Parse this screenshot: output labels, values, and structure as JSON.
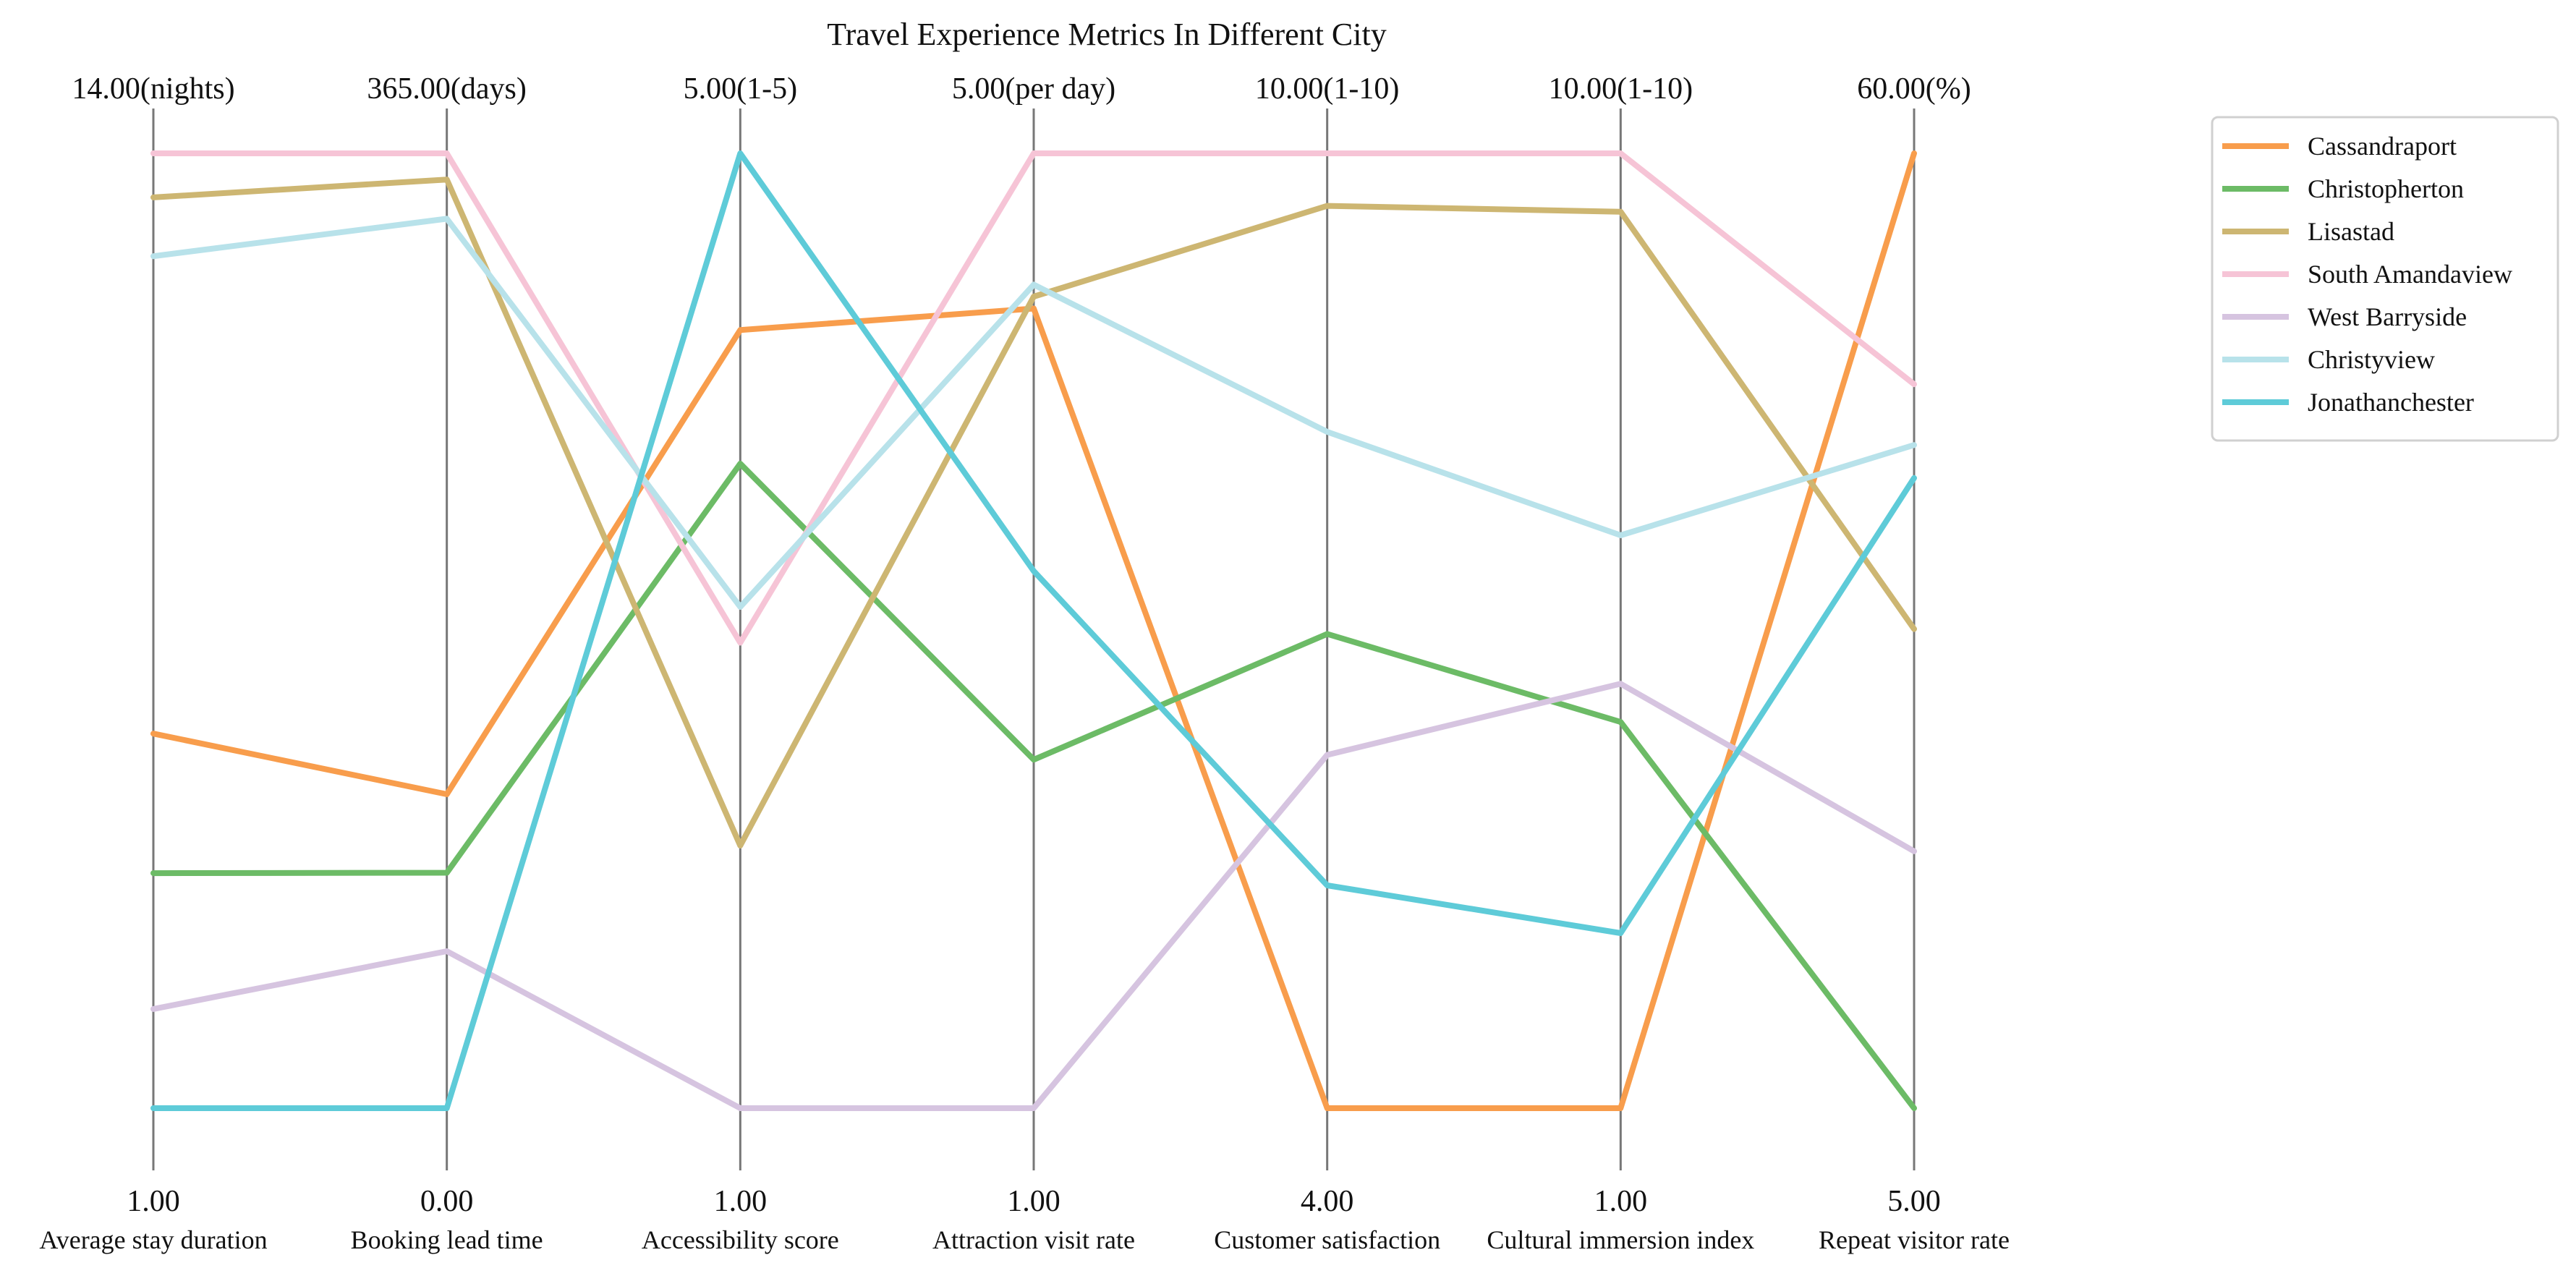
{
  "chart_data": {
    "type": "parallel_coordinates",
    "title": "Travel Experience Metrics In Different City",
    "axes": [
      {
        "name": "Average stay duration",
        "min_label": "1.00",
        "max_label": "14.00(nights)",
        "min": 1,
        "max": 14
      },
      {
        "name": "Booking lead time",
        "min_label": "0.00",
        "max_label": "365.00(days)",
        "min": 0,
        "max": 365
      },
      {
        "name": "Accessibility score",
        "min_label": "1.00",
        "max_label": "5.00(1-5)",
        "min": 1,
        "max": 5
      },
      {
        "name": "Attraction visit rate",
        "min_label": "1.00",
        "max_label": "5.00(per day)",
        "min": 1,
        "max": 5
      },
      {
        "name": "Customer satisfaction",
        "min_label": "4.00",
        "max_label": "10.00(1-10)",
        "min": 4,
        "max": 10
      },
      {
        "name": "Cultural immersion index",
        "min_label": "1.00",
        "max_label": "10.00(1-10)",
        "min": 1,
        "max": 10
      },
      {
        "name": "Repeat visitor rate",
        "min_label": "5.00",
        "max_label": "60.00(%)",
        "min": 5,
        "max": 60
      }
    ],
    "series": [
      {
        "name": "Cassandraport",
        "color": "#f89d4c",
        "values": [
          6.1,
          120,
          4.26,
          4.35,
          4.0,
          1.0,
          60.0
        ]
      },
      {
        "name": "Christopherton",
        "color": "#6cbb66",
        "values": [
          4.2,
          90,
          3.7,
          2.46,
          6.98,
          4.64,
          5.0
        ]
      },
      {
        "name": "Lisastad",
        "color": "#cdb672",
        "values": [
          13.4,
          355,
          2.1,
          4.4,
          9.67,
          9.45,
          32.6
        ]
      },
      {
        "name": "South Amandaview",
        "color": "#f6c4d6",
        "values": [
          14.0,
          365,
          2.95,
          5.0,
          10.0,
          10.0,
          46.7
        ]
      },
      {
        "name": "West Barryside",
        "color": "#d6c4e0",
        "values": [
          2.35,
          60,
          1.0,
          1.0,
          6.22,
          5.0,
          19.8
        ]
      },
      {
        "name": "Christyview",
        "color": "#b8e2ea",
        "values": [
          12.6,
          340,
          3.1,
          4.45,
          8.25,
          6.4,
          43.2
        ]
      },
      {
        "name": "Jonathanchester",
        "color": "#5ecbd8",
        "values": [
          1.0,
          0,
          5.0,
          3.25,
          5.4,
          2.65,
          41.3
        ]
      }
    ],
    "legend_position": "top-right",
    "grid": false
  }
}
